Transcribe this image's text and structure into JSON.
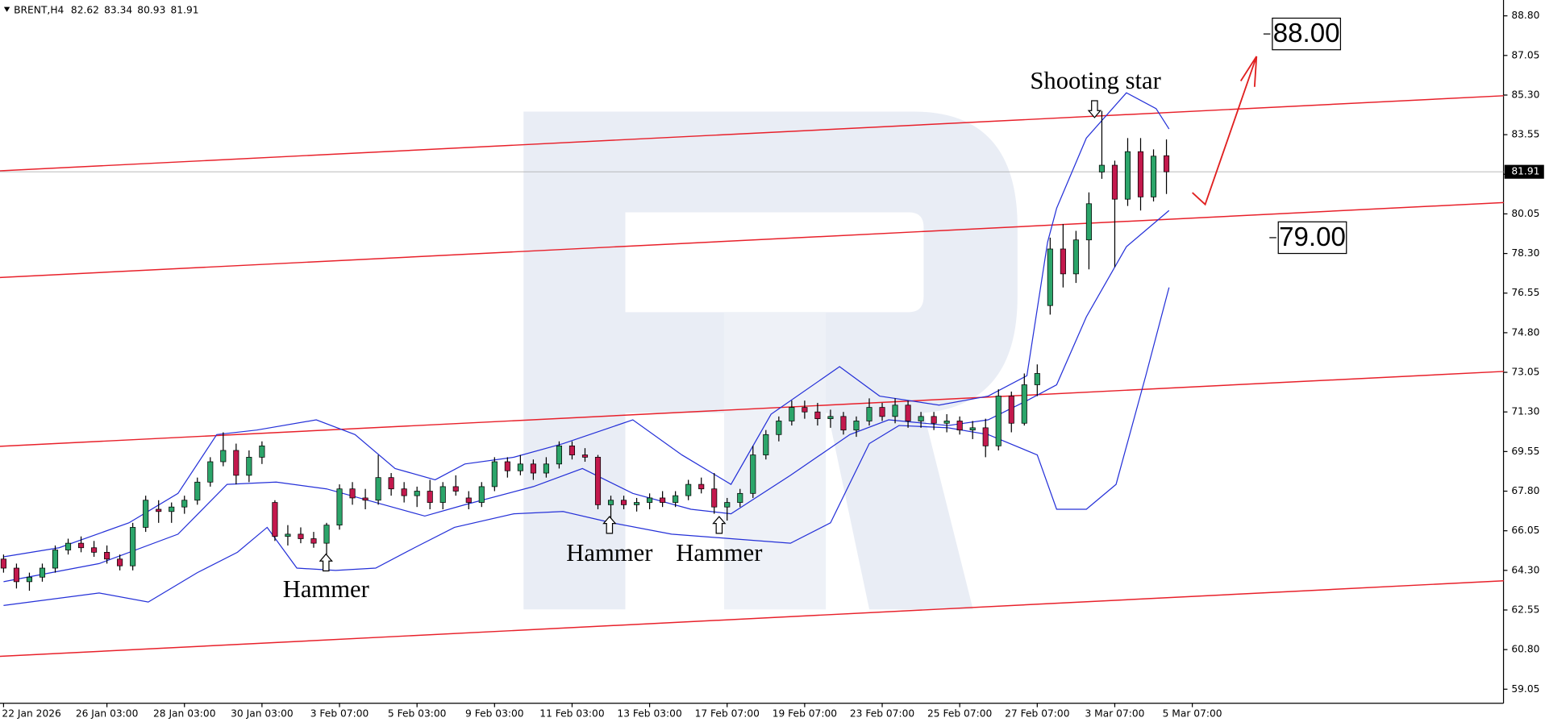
{
  "chart_data": {
    "type": "candlestick",
    "symbol": "BRENT,H4",
    "categories": [
      "22 Jan 2026",
      null,
      null,
      null,
      null,
      null,
      null,
      null,
      "26 Jan 03:00",
      null,
      null,
      null,
      null,
      null,
      "28 Jan 03:00",
      null,
      null,
      null,
      null,
      null,
      "30 Jan 03:00",
      null,
      null,
      null,
      null,
      null,
      "3 Feb 07:00",
      null,
      null,
      null,
      null,
      null,
      "5 Feb 03:00",
      null,
      null,
      null,
      null,
      null,
      "9 Feb 03:00",
      null,
      null,
      null,
      null,
      null,
      "11 Feb 03:00",
      null,
      null,
      null,
      null,
      null,
      "13 Feb 03:00",
      null,
      null,
      null,
      null,
      null,
      "17 Feb 07:00",
      null,
      null,
      null,
      null,
      null,
      "19 Feb 07:00",
      null,
      null,
      null,
      null,
      null,
      "23 Feb 07:00",
      null,
      null,
      null,
      null,
      null,
      "25 Feb 07:00",
      null,
      null,
      null,
      null,
      null,
      "27 Feb 07:00",
      null,
      null,
      null,
      null,
      null,
      "3 Mar 07:00",
      null,
      null,
      null,
      null,
      null,
      "5 Mar 07:00"
    ],
    "open": [
      64.8,
      64.4,
      63.8,
      64.0,
      64.4,
      65.2,
      65.5,
      65.3,
      65.1,
      64.8,
      64.5,
      66.2,
      67.0,
      66.9,
      67.1,
      67.4,
      68.2,
      69.1,
      69.6,
      68.5,
      69.3,
      67.3,
      65.8,
      65.9,
      65.7,
      65.5,
      66.3,
      67.9,
      67.5,
      67.4,
      68.4,
      67.9,
      67.6,
      67.8,
      67.3,
      68.0,
      67.5,
      67.3,
      68.0,
      69.1,
      68.7,
      69.0,
      68.6,
      69.0,
      69.8,
      69.4,
      69.3,
      67.2,
      67.4,
      67.2,
      67.3,
      67.5,
      67.3,
      67.6,
      68.1,
      67.9,
      67.1,
      67.3,
      67.7,
      69.4,
      70.3,
      70.9,
      71.5,
      71.3,
      71.0,
      71.1,
      70.5,
      70.9,
      71.5,
      71.1,
      71.6,
      70.9,
      71.1,
      70.8,
      70.9,
      70.5,
      70.6,
      69.8,
      72.0,
      70.8,
      72.5,
      76.0,
      78.5,
      77.4,
      78.9,
      81.9,
      82.2,
      80.7,
      82.8,
      80.8,
      82.62,
      null,
      null
    ],
    "high": [
      65.0,
      64.6,
      64.2,
      64.6,
      65.4,
      65.7,
      65.8,
      65.6,
      65.4,
      65.0,
      66.4,
      67.6,
      67.4,
      67.3,
      67.6,
      68.4,
      69.3,
      70.4,
      69.9,
      69.6,
      70.0,
      67.4,
      66.3,
      66.2,
      66.0,
      66.4,
      68.1,
      68.2,
      67.9,
      69.4,
      68.6,
      68.2,
      68.0,
      68.3,
      68.2,
      68.5,
      67.8,
      68.2,
      69.3,
      69.3,
      69.4,
      69.2,
      69.3,
      70.0,
      70.0,
      69.7,
      69.4,
      67.6,
      67.6,
      67.5,
      67.7,
      67.8,
      67.8,
      68.3,
      68.4,
      68.6,
      67.5,
      67.9,
      69.8,
      70.5,
      71.1,
      71.8,
      71.8,
      71.7,
      71.4,
      71.3,
      71.1,
      71.9,
      71.7,
      71.9,
      71.8,
      71.3,
      71.3,
      71.2,
      71.1,
      70.9,
      71.0,
      72.3,
      72.2,
      73.0,
      73.4,
      79.0,
      79.6,
      79.3,
      81.0,
      84.6,
      82.4,
      83.4,
      83.4,
      82.9,
      83.34,
      null,
      null
    ],
    "low": [
      64.2,
      63.5,
      63.4,
      63.8,
      64.2,
      65.0,
      65.1,
      64.9,
      64.6,
      64.3,
      64.3,
      66.0,
      66.4,
      66.4,
      66.8,
      67.2,
      68.0,
      68.9,
      68.1,
      68.2,
      69.0,
      65.6,
      65.4,
      65.5,
      65.3,
      65.0,
      66.1,
      67.2,
      67.0,
      67.2,
      67.6,
      67.3,
      67.1,
      67.0,
      67.0,
      67.6,
      67.0,
      67.1,
      67.8,
      68.4,
      68.5,
      68.3,
      68.4,
      68.8,
      69.2,
      69.1,
      67.0,
      66.6,
      67.0,
      66.9,
      67.0,
      67.1,
      67.1,
      67.4,
      67.7,
      66.8,
      66.5,
      67.1,
      67.5,
      69.2,
      70.0,
      70.7,
      71.0,
      70.7,
      70.6,
      70.3,
      70.2,
      70.7,
      70.9,
      70.8,
      70.6,
      70.6,
      70.5,
      70.4,
      70.3,
      70.1,
      69.3,
      69.6,
      70.4,
      70.7,
      72.0,
      75.6,
      76.8,
      77.0,
      77.6,
      81.6,
      77.7,
      80.4,
      80.2,
      80.6,
      80.93,
      null,
      null
    ],
    "close": [
      64.4,
      63.8,
      64.0,
      64.4,
      65.2,
      65.5,
      65.3,
      65.1,
      64.8,
      64.5,
      66.2,
      67.4,
      66.9,
      67.1,
      67.4,
      68.2,
      69.1,
      69.6,
      68.5,
      69.3,
      69.8,
      65.8,
      65.9,
      65.7,
      65.5,
      66.3,
      67.9,
      67.5,
      67.4,
      68.4,
      67.9,
      67.6,
      67.8,
      67.3,
      68.0,
      67.8,
      67.3,
      68.0,
      69.1,
      68.7,
      69.0,
      68.6,
      69.0,
      69.8,
      69.4,
      69.3,
      67.2,
      67.4,
      67.2,
      67.3,
      67.5,
      67.3,
      67.6,
      68.1,
      67.9,
      67.1,
      67.3,
      67.7,
      69.4,
      70.3,
      70.9,
      71.5,
      71.3,
      71.0,
      71.1,
      70.5,
      70.9,
      71.5,
      71.1,
      71.6,
      70.9,
      71.1,
      70.8,
      70.9,
      70.5,
      70.6,
      69.8,
      72.0,
      70.8,
      72.5,
      73.0,
      78.5,
      77.4,
      78.9,
      80.5,
      82.2,
      80.7,
      82.8,
      80.8,
      82.6,
      81.91,
      null,
      null
    ],
    "up_color": "#2ca56a",
    "down_color": "#c3194d",
    "bands": [
      {
        "color": "#2430d8",
        "x": [
          0,
          4.3,
          9.7,
          13.5,
          16.5,
          19.6,
          24.2,
          27.2,
          30.3,
          33.4,
          35.7,
          39.5,
          43.3,
          48.7,
          52.5,
          56.3,
          59.4,
          64.7,
          67.8,
          72.4,
          76.2,
          79.2,
          80.8,
          81.5,
          83.8,
          86.9,
          89.2,
          90.2
        ],
        "values": [
          64.9,
          65.3,
          66.4,
          67.7,
          70.3,
          70.5,
          70.95,
          70.3,
          68.8,
          68.3,
          69.0,
          69.3,
          69.9,
          70.95,
          69.4,
          68.1,
          71.2,
          73.3,
          72.0,
          71.6,
          72.0,
          72.9,
          78.8,
          80.3,
          83.4,
          85.4,
          84.7,
          83.8
        ]
      },
      {
        "color": "#2430d8",
        "x": [
          0,
          7.4,
          13.5,
          17.3,
          21.1,
          25,
          28.8,
          32.6,
          35.7,
          41,
          44.8,
          48.7,
          53.2,
          56.3,
          60.9,
          65.5,
          68.5,
          73.1,
          76.2,
          79.2,
          81.5,
          83.8,
          86.9,
          90.2
        ],
        "values": [
          63.8,
          64.6,
          65.9,
          68.1,
          68.2,
          67.9,
          67.3,
          66.7,
          67.2,
          68.0,
          68.8,
          67.7,
          67.0,
          66.8,
          68.5,
          70.3,
          70.95,
          70.7,
          70.95,
          71.8,
          72.5,
          75.5,
          78.6,
          80.2
        ]
      },
      {
        "color": "#2430d8",
        "x": [
          0,
          7.4,
          11.2,
          15,
          18.1,
          20.4,
          22.7,
          25.7,
          28.8,
          31.8,
          34.9,
          39.5,
          43.3,
          47.1,
          51.7,
          56.3,
          60.9,
          64,
          67,
          69.3,
          73.1,
          76.2,
          80,
          81.5,
          83.8,
          86.1,
          88.4,
          90.2
        ],
        "values": [
          62.75,
          63.3,
          62.9,
          64.2,
          65.1,
          66.2,
          64.4,
          64.3,
          64.4,
          65.3,
          66.2,
          66.8,
          66.9,
          66.4,
          65.9,
          65.7,
          65.5,
          66.4,
          69.9,
          70.7,
          70.6,
          70.3,
          69.4,
          67.0,
          67.0,
          68.1,
          72.9,
          76.8
        ]
      }
    ],
    "channel_lines": [
      {
        "color": "#e8202a",
        "x": [
          -0.3,
          116.1
        ],
        "values": [
          81.95,
          85.27
        ]
      },
      {
        "color": "#e8202a",
        "x": [
          -0.3,
          116.1
        ],
        "values": [
          77.24,
          80.55
        ]
      },
      {
        "color": "#e8202a",
        "x": [
          -0.3,
          116.1
        ],
        "values": [
          69.78,
          73.09
        ]
      },
      {
        "color": "#e8202a",
        "x": [
          -0.3,
          116.1
        ],
        "values": [
          60.5,
          63.84
        ]
      }
    ],
    "targets": [
      {
        "value": 88,
        "label": "88.00"
      },
      {
        "value": 79,
        "label": "79.00"
      }
    ],
    "annotations": [
      "Shooting star",
      "Hammer",
      "Hammer",
      "Hammer"
    ],
    "ylim": [
      58.43,
      89.5
    ],
    "yticks": [
      {
        "value": 88.8,
        "label": "88.80"
      },
      {
        "value": 87.05,
        "label": "87.05"
      },
      {
        "value": 85.3,
        "label": "85.30"
      },
      {
        "value": 83.55,
        "label": "83.55"
      },
      {
        "value": 81.8,
        "label": "81.80"
      },
      {
        "value": 80.05,
        "label": "80.05"
      },
      {
        "value": 78.3,
        "label": "78.30"
      },
      {
        "value": 76.55,
        "label": "76.55"
      },
      {
        "value": 74.8,
        "label": "74.80"
      },
      {
        "value": 73.05,
        "label": "73.05"
      },
      {
        "value": 71.3,
        "label": "71.30"
      },
      {
        "value": 69.55,
        "label": "69.55"
      },
      {
        "value": 67.8,
        "label": "67.80"
      },
      {
        "value": 66.05,
        "label": "66.05"
      },
      {
        "value": 64.3,
        "label": "64.30"
      },
      {
        "value": 62.55,
        "label": "62.55"
      },
      {
        "value": 60.8,
        "label": "60.80"
      },
      {
        "value": 59.05,
        "label": "59.05"
      }
    ]
  }
}
